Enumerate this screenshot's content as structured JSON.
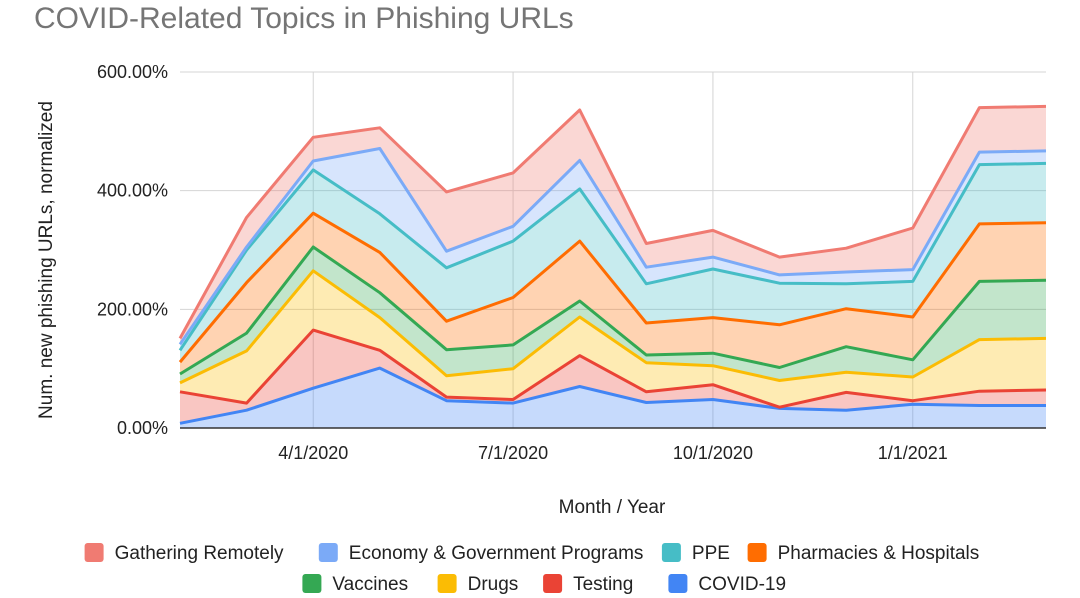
{
  "chart_data": {
    "type": "area",
    "stacked": true,
    "title": "COVID-Related Topics in Phishing URLs",
    "xlabel": "Month / Year",
    "ylabel": "Num. new phishing URLs, normalized",
    "x": [
      "2020-01",
      "2020-02",
      "2020-03",
      "2020-04",
      "2020-05",
      "2020-06",
      "2020-07",
      "2020-08",
      "2020-09",
      "2020-10",
      "2020-11",
      "2020-12",
      "2021-01",
      "2021-02"
    ],
    "x_ticks": [
      {
        "x": "2020-03",
        "label": "4/1/2020"
      },
      {
        "x": "2020-06",
        "label": "7/1/2020"
      },
      {
        "x": "2020-09",
        "label": "10/1/2020"
      },
      {
        "x": "2020-12",
        "label": "1/1/2021"
      }
    ],
    "y_ticks": [
      {
        "value": 0,
        "label": "0.00%"
      },
      {
        "value": 200,
        "label": "200.00%"
      },
      {
        "value": 400,
        "label": "400.00%"
      },
      {
        "value": 600,
        "label": "600.00%"
      }
    ],
    "ylim": [
      0,
      600
    ],
    "grid": true,
    "legend_position": "bottom",
    "series": [
      {
        "name": "COVID-19",
        "color": "#4285f4",
        "values": [
          8,
          30,
          67,
          101,
          46,
          42,
          70,
          43,
          48,
          33,
          30,
          40,
          38,
          38
        ]
      },
      {
        "name": "Testing",
        "color": "#ea4335",
        "values": [
          53,
          12,
          98,
          30,
          6,
          6,
          52,
          18,
          25,
          2,
          30,
          6,
          24,
          26
        ]
      },
      {
        "name": "Drugs",
        "color": "#fbbc04",
        "values": [
          15,
          88,
          100,
          55,
          36,
          52,
          65,
          49,
          32,
          45,
          34,
          40,
          87,
          87
        ]
      },
      {
        "name": "Vaccines",
        "color": "#34a853",
        "values": [
          15,
          30,
          40,
          42,
          44,
          40,
          27,
          13,
          21,
          22,
          43,
          29,
          98,
          98
        ]
      },
      {
        "name": "Pharmacies & Hospitals",
        "color": "#ff6d01",
        "values": [
          20,
          85,
          57,
          68,
          48,
          80,
          101,
          54,
          60,
          72,
          64,
          72,
          97,
          97
        ]
      },
      {
        "name": "PPE",
        "color": "#46bdc6",
        "values": [
          20,
          55,
          73,
          65,
          90,
          95,
          88,
          66,
          82,
          70,
          42,
          60,
          100,
          100
        ]
      },
      {
        "name": "Economy & Government Programs",
        "color": "#7baaf7",
        "values": [
          10,
          5,
          15,
          110,
          28,
          25,
          48,
          28,
          20,
          14,
          20,
          20,
          21,
          21
        ]
      },
      {
        "name": "Gathering Remotely",
        "color": "#f07b72",
        "values": [
          10,
          50,
          40,
          35,
          100,
          90,
          85,
          40,
          45,
          30,
          40,
          70,
          75,
          75
        ]
      }
    ],
    "legend_rows": [
      [
        "Gathering Remotely",
        "Economy & Government Programs",
        "PPE",
        "Pharmacies & Hospitals"
      ],
      [
        "Vaccines",
        "Drugs",
        "Testing",
        "COVID-19"
      ]
    ]
  }
}
